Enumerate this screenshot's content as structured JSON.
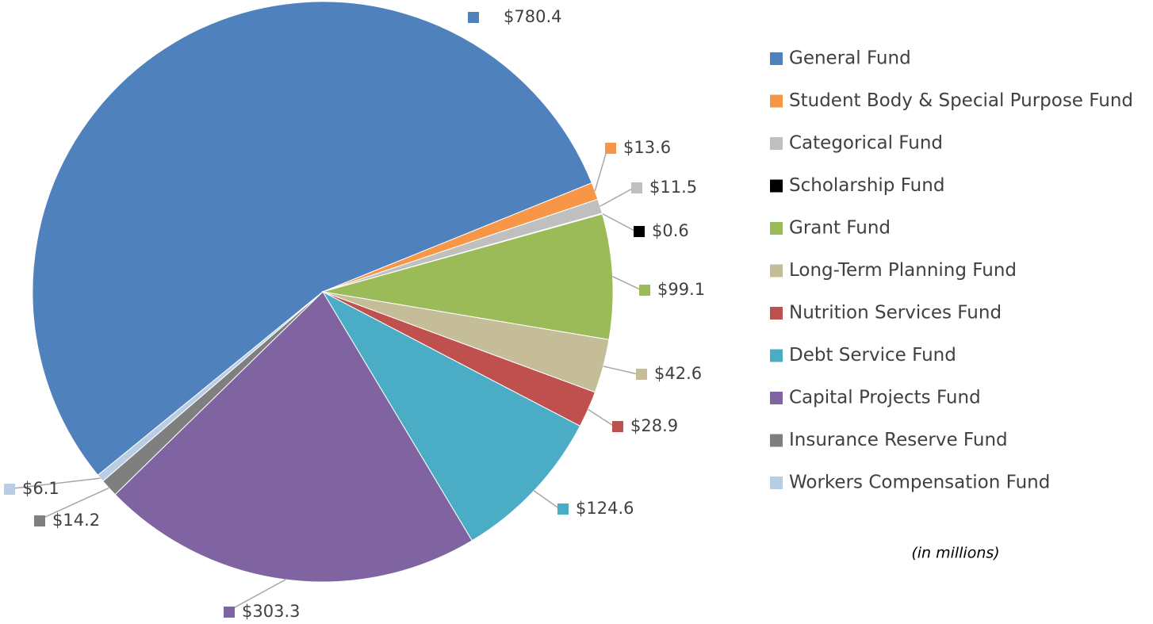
{
  "chart_data": {
    "type": "pie",
    "categories": [
      "General Fund",
      "Student Body & Special Purpose Fund",
      "Categorical Fund",
      "Scholarship Fund",
      "Grant Fund",
      "Long-Term Planning Fund",
      "Nutrition Services Fund",
      "Debt Service Fund",
      "Capital Projects Fund",
      "Insurance Reserve Fund",
      "Workers Compensation Fund"
    ],
    "values": [
      780.4,
      13.6,
      11.5,
      0.6,
      99.1,
      42.6,
      28.9,
      124.6,
      303.3,
      14.2,
      6.1
    ],
    "value_labels": [
      "$780.4",
      "$13.6",
      "$11.5",
      "$0.6",
      "$99.1",
      "$42.6",
      "$28.9",
      "$124.6",
      "$303.3",
      "$14.2",
      "$6.1"
    ],
    "colors": [
      "#4f81bd",
      "#f79646",
      "#bfbfbf",
      "#000000",
      "#9bbb59",
      "#c4bd97",
      "#c0504d",
      "#4bacc6",
      "#8064a2",
      "#7f7f7f",
      "#b9cde5"
    ],
    "annotation": "(in millions)",
    "legend": "right"
  }
}
